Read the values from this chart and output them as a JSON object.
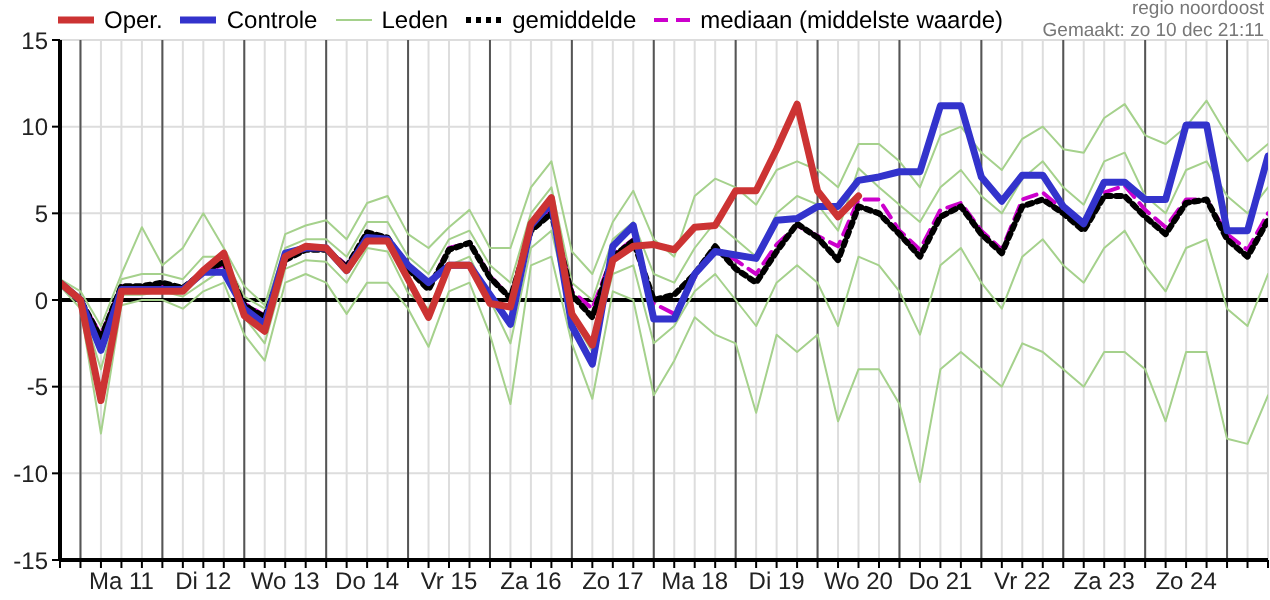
{
  "chart_data": {
    "type": "line",
    "annotations": [
      "regio noordoost",
      "Gemaakt: zo 10 dec 21:11"
    ],
    "categories": [
      null,
      null,
      null,
      "Ma 11",
      null,
      null,
      null,
      "Di 12",
      null,
      null,
      null,
      "Wo 13",
      null,
      null,
      null,
      "Do 14",
      null,
      null,
      null,
      "Vr 15",
      null,
      null,
      null,
      "Za 16",
      null,
      null,
      null,
      "Zo 17",
      null,
      null,
      null,
      "Ma 18",
      null,
      null,
      null,
      "Di 19",
      null,
      null,
      null,
      "Wo 20",
      null,
      null,
      null,
      "Do 21",
      null,
      null,
      null,
      "Vr 22",
      null,
      null,
      null,
      "Za 23",
      null,
      null,
      null,
      "Zo 24",
      null,
      null,
      null,
      null
    ],
    "ylim": [
      -15,
      15
    ],
    "yticks": [
      -15,
      -10,
      -5,
      0,
      5,
      10,
      15
    ],
    "grid": true,
    "legend": "top",
    "ref_lines": [
      {
        "axis": "y",
        "value": 0,
        "color": "#000000"
      }
    ],
    "series": [
      {
        "name": "Oper.",
        "color": "#cc3333",
        "line_style": "solid",
        "values": [
          1.0,
          0,
          -5.8,
          0.5,
          0.5,
          0.5,
          0.5,
          1.7,
          2.7,
          -0.9,
          -1.8,
          2.5,
          3.1,
          3.0,
          1.7,
          3.4,
          3.4,
          1.2,
          -1.0,
          2.0,
          2.0,
          -0.2,
          -0.4,
          4.4,
          5.9,
          -0.8,
          -2.6,
          2.3,
          3.1,
          3.2,
          2.9,
          4.2,
          4.3,
          6.3,
          6.3,
          8.7,
          11.3,
          6.3,
          4.8,
          6.0,
          null,
          null,
          null,
          null,
          null,
          null,
          null,
          null,
          null,
          null,
          null,
          null,
          null,
          null,
          null,
          null,
          null,
          null,
          null,
          null
        ]
      },
      {
        "name": "Controle",
        "color": "#3333cc",
        "line_style": "solid",
        "values": [
          1.0,
          0,
          -2.9,
          0.6,
          0.6,
          0.6,
          0.6,
          1.6,
          1.6,
          -0.5,
          -1.4,
          2.7,
          3.0,
          3.0,
          1.7,
          3.6,
          3.5,
          2.0,
          1.0,
          2.0,
          2.0,
          0.3,
          -1.4,
          4.3,
          5.6,
          -1.5,
          -3.7,
          3.1,
          4.3,
          -1.1,
          -1.1,
          1.5,
          2.8,
          2.6,
          2.4,
          4.6,
          4.7,
          5.4,
          5.4,
          6.9,
          7.1,
          7.4,
          7.4,
          11.2,
          11.2,
          7.1,
          5.7,
          7.2,
          7.2,
          5.4,
          4.4,
          6.8,
          6.8,
          5.8,
          5.8,
          10.1,
          10.1,
          4.0,
          4.0,
          8.3
        ]
      },
      {
        "name": "Leden",
        "color": "#a5d18c",
        "line_style": "solid",
        "values": [
          1.2,
          0.5,
          -1.5,
          1.5,
          4.2,
          2.0,
          3.0,
          5.0,
          3.0,
          0.8,
          -0.3,
          3.8,
          4.3,
          4.6,
          3.5,
          5.6,
          6.0,
          3.8,
          3.0,
          4.2,
          5.2,
          3.0,
          3.0,
          6.5,
          8.0,
          2.8,
          1.5,
          4.5,
          6.3,
          3.5,
          2.5,
          6.0,
          7.0,
          6.5,
          5.5,
          7.5,
          8.0,
          7.5,
          6.5,
          9.0,
          9.0,
          8.0,
          6.5,
          9.5,
          10.0,
          8.5,
          7.5,
          9.3,
          10.0,
          8.7,
          8.5,
          10.5,
          11.3,
          9.5,
          9.0,
          10.0,
          11.5,
          9.5,
          8.0,
          9.0
        ]
      },
      {
        "name": "gemiddelde",
        "color": "#000000",
        "line_style": "dotted",
        "values": [
          1.0,
          0,
          -2.2,
          0.8,
          0.8,
          1.0,
          0.7,
          1.6,
          2.2,
          -0.3,
          -1.0,
          2.3,
          2.9,
          2.9,
          1.9,
          3.9,
          3.6,
          1.8,
          0.6,
          2.9,
          3.3,
          1.3,
          0.1,
          4.0,
          5.0,
          0.3,
          -1.0,
          2.5,
          3.4,
          0.0,
          0.3,
          1.5,
          3.1,
          1.8,
          1.0,
          2.8,
          4.4,
          3.6,
          2.3,
          5.4,
          5.0,
          3.8,
          2.5,
          4.8,
          5.4,
          3.8,
          2.7,
          5.4,
          5.8,
          5.0,
          4.0,
          6.0,
          6.0,
          4.8,
          3.8,
          5.6,
          5.8,
          3.5,
          2.5,
          4.6
        ]
      },
      {
        "name": "mediaan (middelste waarde)",
        "color": "#cc00cc",
        "line_style": "dashed",
        "values": [
          1.0,
          0,
          -2.0,
          0.8,
          0.8,
          0.9,
          0.7,
          1.7,
          2.0,
          -0.2,
          -0.9,
          2.4,
          3.0,
          3.0,
          2.0,
          3.8,
          3.6,
          1.9,
          0.7,
          3.0,
          3.3,
          1.4,
          0.1,
          4.2,
          5.2,
          0.5,
          -0.5,
          2.6,
          3.5,
          -0.2,
          -0.8,
          1.3,
          3.0,
          2.3,
          1.5,
          3.2,
          4.3,
          3.7,
          3.1,
          5.8,
          5.8,
          4.0,
          2.9,
          5.2,
          5.6,
          4.0,
          2.9,
          5.8,
          6.2,
          5.2,
          4.4,
          6.2,
          6.6,
          5.2,
          4.2,
          5.8,
          5.8,
          3.8,
          2.9,
          5.0
        ]
      },
      {
        "color": "#a5d18c",
        "line_style": "solid",
        "values": [
          0.8,
          -0.5,
          -7.7,
          -0.3,
          0.0,
          0.0,
          -0.5,
          0.5,
          1.0,
          -2.0,
          -3.5,
          1.0,
          1.5,
          1.0,
          -0.8,
          1.0,
          1.0,
          -0.5,
          -2.7,
          0.5,
          1.0,
          -2.0,
          -6.0,
          2.0,
          2.5,
          -2.5,
          -5.7,
          0.5,
          0.0,
          -5.5,
          -3.5,
          -1.0,
          -2.0,
          -2.5,
          -6.5,
          -2.0,
          -3.0,
          -2.0,
          -7.0,
          -4.0,
          -4.0,
          -6.0,
          -10.5,
          -4.0,
          -3.0,
          -4.0,
          -5.0,
          -2.5,
          -3.0,
          -4.0,
          -5.0,
          -3.0,
          -3.0,
          -4.0,
          -7.0,
          -3.0,
          -3.0,
          -8.0,
          -8.3,
          -5.5
        ]
      },
      {
        "color": "#a5d18c",
        "line_style": "solid",
        "values": [
          1.1,
          0.2,
          -2.5,
          1.2,
          1.5,
          1.5,
          1.2,
          2.5,
          2.5,
          0.2,
          -0.5,
          3.0,
          3.5,
          3.5,
          2.5,
          4.5,
          4.5,
          2.5,
          1.5,
          3.5,
          4.0,
          2.0,
          1.0,
          5.0,
          6.5,
          1.0,
          0.0,
          3.5,
          4.5,
          1.5,
          1.0,
          3.0,
          4.5,
          3.5,
          2.5,
          5.0,
          6.0,
          5.5,
          4.0,
          7.6,
          6.5,
          5.5,
          4.5,
          6.5,
          7.5,
          6.0,
          5.0,
          7.0,
          8.0,
          6.5,
          5.5,
          8.0,
          8.5,
          6.0,
          5.0,
          7.5,
          8.0,
          6.0,
          5.0,
          6.5
        ]
      },
      {
        "color": "#a5d18c",
        "line_style": "solid",
        "values": [
          0.9,
          -0.2,
          -4.0,
          0.3,
          0.3,
          0.5,
          0.2,
          1.0,
          1.8,
          -1.0,
          -2.5,
          1.8,
          2.3,
          2.2,
          1.0,
          3.0,
          2.8,
          0.4,
          -0.5,
          2.0,
          2.5,
          0.0,
          -2.5,
          3.0,
          4.0,
          -1.0,
          -3.0,
          1.5,
          2.0,
          -2.5,
          -1.5,
          0.5,
          1.5,
          0.0,
          -1.5,
          1.0,
          2.0,
          1.0,
          -1.5,
          2.5,
          2.0,
          0.5,
          -2.0,
          2.0,
          3.0,
          1.0,
          -0.5,
          2.5,
          3.5,
          2.0,
          1.0,
          3.0,
          4.0,
          2.0,
          0.5,
          3.0,
          3.5,
          -0.5,
          -1.5,
          1.5
        ]
      }
    ]
  }
}
